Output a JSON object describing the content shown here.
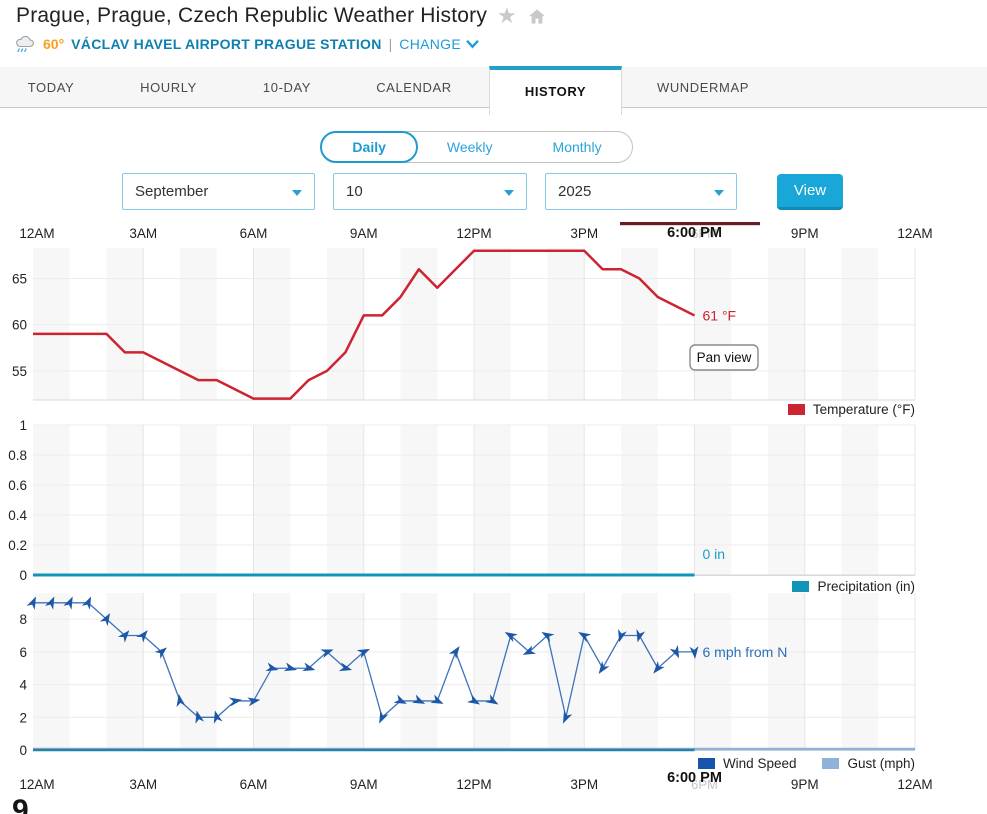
{
  "header": {
    "title": "Prague, Prague, Czech Republic Weather History",
    "station": {
      "temp": "60°",
      "name": "VÁCLAV HAVEL AIRPORT PRAGUE STATION",
      "divider": "|",
      "change_label": "CHANGE"
    }
  },
  "tabs": [
    {
      "label": "TODAY"
    },
    {
      "label": "HOURLY"
    },
    {
      "label": "10-DAY"
    },
    {
      "label": "CALENDAR"
    },
    {
      "label": "HISTORY",
      "active": true
    },
    {
      "label": "WUNDERMAP"
    }
  ],
  "range_toggle": {
    "options": [
      "Daily",
      "Weekly",
      "Monthly"
    ],
    "selected": "Daily"
  },
  "date_controls": {
    "month": "September",
    "day": "10",
    "year": "2025",
    "view_label": "View"
  },
  "time_axis": {
    "labels": [
      "12AM",
      "3AM",
      "6AM",
      "9AM",
      "12PM",
      "3PM",
      "6PM",
      "9PM",
      "12AM"
    ],
    "hours": [
      0,
      3,
      6,
      9,
      12,
      15,
      18,
      21,
      24
    ],
    "current_hour": 18,
    "current_label": "6:00 PM"
  },
  "overlays": {
    "pan_tooltip": "Pan view"
  },
  "footer": {
    "partial_glyph": "9"
  },
  "colors": {
    "accent_blue": "#1e9cd0",
    "button_blue": "#18a7d8",
    "station_blue": "#0f7fae",
    "temp_orange": "#f9a11b",
    "tab_teal": "#249fca"
  },
  "chart_data": [
    {
      "type": "line",
      "name": "temperature",
      "legend": [
        "Temperature (°F)"
      ],
      "color": "#cc2430",
      "ylabel": "Temperature (°F)",
      "yticks": [
        55,
        60,
        65
      ],
      "ylim": [
        51.9,
        68.3
      ],
      "x_start_hour": 0,
      "x_interval_hours": 0.5,
      "values": [
        59,
        59,
        59,
        59,
        59,
        57,
        57,
        56,
        55,
        54,
        54,
        53,
        52,
        52,
        52,
        54,
        55,
        57,
        61,
        61,
        63,
        66,
        64,
        66,
        68,
        68,
        68,
        68,
        68,
        68,
        68,
        66,
        66,
        65,
        63,
        62,
        61
      ],
      "end_label": "61 °F",
      "end_label_value": 61
    },
    {
      "type": "line",
      "name": "precipitation",
      "legend": [
        "Precipitation (in)"
      ],
      "color": "#1293b8",
      "ylabel": "Precipitation (in)",
      "yticks": [
        0,
        0.2,
        0.4,
        0.6,
        0.8,
        1
      ],
      "ylim": [
        0,
        1
      ],
      "x_start_hour": 0,
      "x_interval_hours": 0.5,
      "values": [
        0,
        0,
        0,
        0,
        0,
        0,
        0,
        0,
        0,
        0,
        0,
        0,
        0,
        0,
        0,
        0,
        0,
        0,
        0,
        0,
        0,
        0,
        0,
        0,
        0,
        0,
        0,
        0,
        0,
        0,
        0,
        0,
        0,
        0,
        0,
        0,
        0
      ],
      "end_label": "0 in",
      "end_label_value": 0
    },
    {
      "type": "line",
      "name": "wind",
      "legend": [
        "Wind Speed",
        "Gust (mph)"
      ],
      "yticks": [
        0,
        2,
        4,
        6,
        8
      ],
      "ylim": [
        0,
        9.6
      ],
      "x_start_hour": 0,
      "x_interval_hours": 0.5,
      "series": [
        {
          "name": "Wind Speed",
          "swatch": "#1553ad",
          "line_color": "#3b73b9",
          "marker_color": "#1c57a8",
          "marker": "direction-arrow",
          "values": [
            9,
            9,
            9,
            9,
            8,
            7,
            7,
            6,
            3,
            2,
            2,
            3,
            3,
            5,
            5,
            5,
            6,
            5,
            6,
            2,
            3,
            3,
            3,
            6,
            3,
            3,
            7,
            6,
            7,
            2,
            7,
            5,
            7,
            7,
            5,
            6,
            6
          ],
          "marker_angles_deg": [
            295,
            295,
            295,
            295,
            300,
            310,
            310,
            320,
            260,
            255,
            255,
            350,
            350,
            15,
            15,
            15,
            340,
            15,
            335,
            115,
            25,
            25,
            25,
            305,
            30,
            30,
            210,
            155,
            210,
            115,
            210,
            125,
            105,
            105,
            130,
            65,
            85
          ]
        },
        {
          "name": "Gust (mph)",
          "swatch": "#8fb2d9",
          "line_color": "#8fb2d9",
          "constant_value": 0,
          "x_end_hour": 24
        }
      ],
      "baseline_observed_color": "#2a82a2",
      "end_label": "6 mph from N",
      "end_label_value": 6,
      "label_color": "#2e6fba"
    }
  ]
}
